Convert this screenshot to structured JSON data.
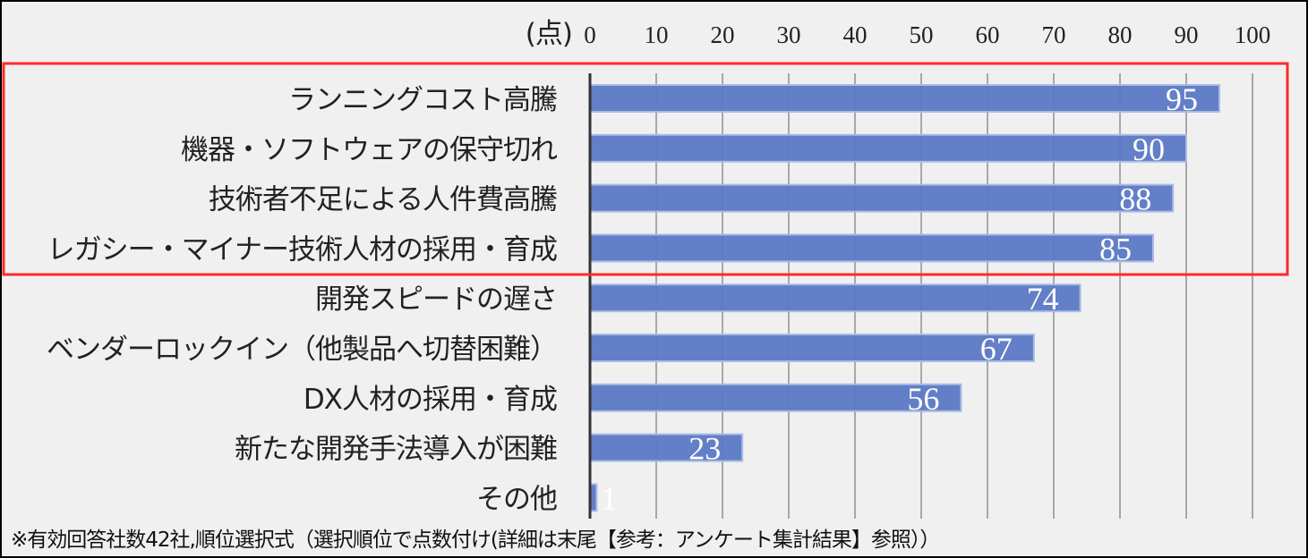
{
  "chart_data": {
    "type": "bar",
    "orientation": "horizontal",
    "unit_label": "(点)",
    "xlim": [
      0,
      100
    ],
    "ticks": [
      "0",
      "10",
      "20",
      "30",
      "40",
      "50",
      "60",
      "70",
      "80",
      "90",
      "100"
    ],
    "tick_values": [
      0,
      10,
      20,
      30,
      40,
      50,
      60,
      70,
      80,
      90,
      100
    ],
    "grid": true,
    "categories": [
      "ランニングコスト高騰",
      "機器・ソフトウェアの保守切れ",
      "技術者不足による人件費高騰",
      "レガシー・マイナー技術人材の採用・育成",
      "開発スピードの遅さ",
      "ベンダーロックイン（他製品へ切替困難）",
      "DX人材の採用・育成",
      "新たな開発手法導入が困難",
      "その他"
    ],
    "values": [
      95,
      90,
      88,
      85,
      74,
      67,
      56,
      23,
      1
    ],
    "highlighted_categories": 4,
    "colors": {
      "bar": "#5b78c4",
      "bar_border": "#a9bbe6",
      "highlight_box": "#ff2a2a"
    }
  },
  "footnote": "※有効回答社数42社,順位選択式（選択順位で点数付け(詳細は末尾【参考：アンケート集計結果】参照））"
}
